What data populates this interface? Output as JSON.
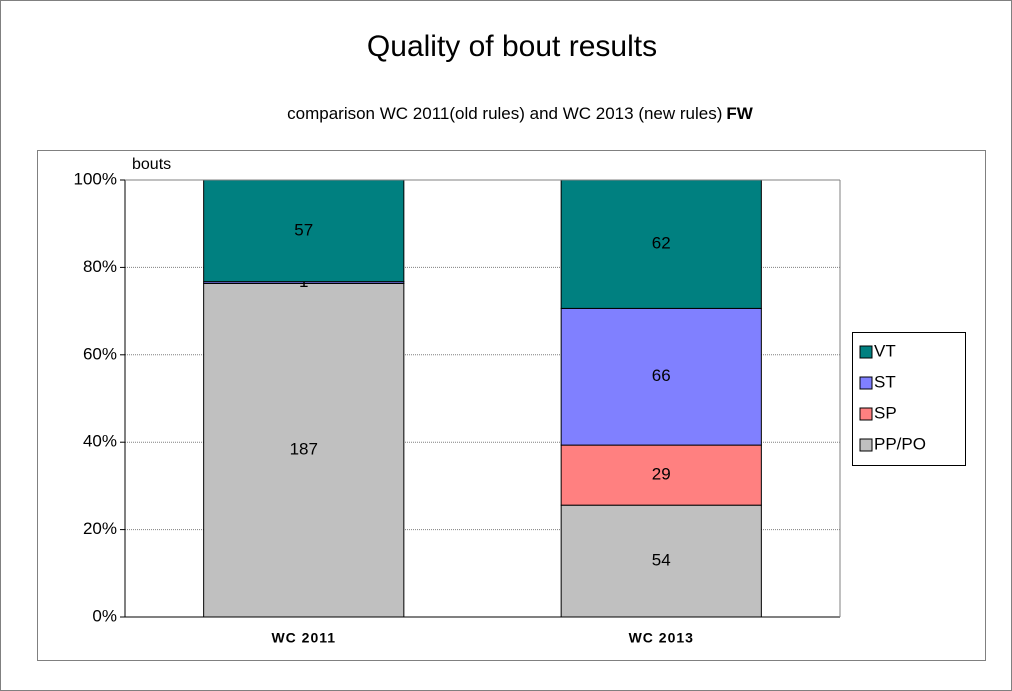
{
  "chart_data": {
    "type": "bar",
    "stacking": "percent",
    "title": "Quality of bout results",
    "subtitle": "comparison WC 2011(old rules) and WC 2013 (new rules)",
    "subtitle_bold": "FW",
    "y_label": "bouts",
    "categories": [
      "WC 2011",
      "WC 2013"
    ],
    "series": [
      {
        "name": "PP/PO",
        "color": "#c0c0c0",
        "values": [
          187,
          54
        ]
      },
      {
        "name": "SP",
        "color": "#ff8080",
        "values": [
          null,
          29
        ]
      },
      {
        "name": "ST",
        "color": "#8080ff",
        "values": [
          1,
          66
        ]
      },
      {
        "name": "VT",
        "color": "#008080",
        "values": [
          57,
          62
        ]
      }
    ],
    "ylim": [
      0,
      100
    ],
    "yticks": [
      {
        "value": 0,
        "label": "0%"
      },
      {
        "value": 20,
        "label": "20%"
      },
      {
        "value": 40,
        "label": "40%"
      },
      {
        "value": 60,
        "label": "60%"
      },
      {
        "value": 80,
        "label": "80%"
      },
      {
        "value": 100,
        "label": "100%"
      }
    ],
    "grid": true,
    "legend": "right"
  }
}
